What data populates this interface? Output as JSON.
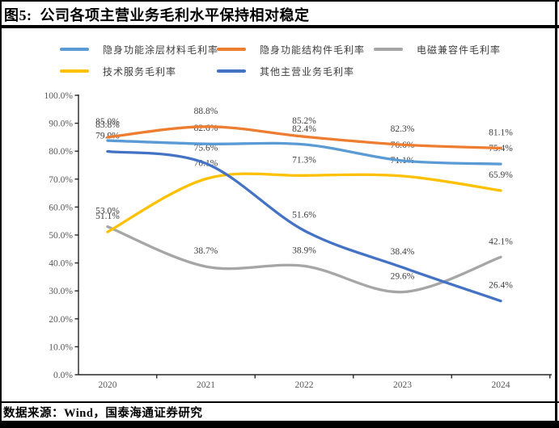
{
  "figure": {
    "title": "图5:  公司各项主营业务毛利水平保持相对稳定",
    "source": "数据来源：Wind，国泰海通证券研究"
  },
  "chart_data": {
    "type": "line",
    "title": "公司各项主营业务毛利水平保持相对稳定",
    "x": [
      "2020",
      "2021",
      "2022",
      "2023",
      "2024"
    ],
    "series": [
      {
        "name": "隐身功能涂层材料毛利率",
        "color": "#5B9BD5",
        "values": [
          83.8,
          82.6,
          82.4,
          76.6,
          75.4
        ]
      },
      {
        "name": "隐身功能结构件毛利率",
        "color": "#ED7D31",
        "values": [
          85.0,
          88.8,
          85.2,
          82.3,
          81.1
        ]
      },
      {
        "name": "电磁兼容件毛利率",
        "color": "#A6A6A6",
        "values": [
          53.0,
          38.7,
          38.9,
          29.6,
          42.1
        ]
      },
      {
        "name": "技术服务毛利率",
        "color": "#FFC000",
        "values": [
          51.1,
          70.1,
          71.3,
          71.1,
          65.9
        ]
      },
      {
        "name": "其他主营业务毛利率",
        "color": "#4472C4",
        "values": [
          79.9,
          75.6,
          51.6,
          38.4,
          26.4
        ]
      }
    ],
    "ylim": [
      0,
      100
    ],
    "ytick_step": 10,
    "ytick_labels": [
      "0.0%",
      "10.0%",
      "20.0%",
      "30.0%",
      "40.0%",
      "50.0%",
      "60.0%",
      "70.0%",
      "80.0%",
      "90.0%",
      "100.0%"
    ],
    "grid": false,
    "smooth": true,
    "data_labels": true,
    "legend_position": "top",
    "colors": {
      "axis": "#262626",
      "axis_text": "#595959",
      "data_label_text": "#404040"
    }
  }
}
